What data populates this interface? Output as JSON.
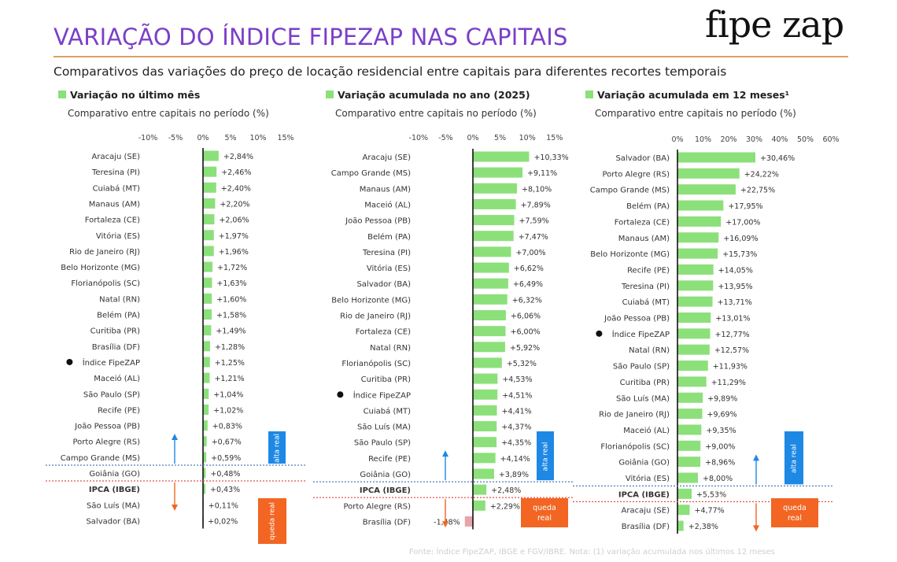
{
  "header": {
    "title": "VARIAÇÃO DO ÍNDICE FIPEZAP NAS CAPITAIS",
    "logo": "fipe zap",
    "subtitle": "Comparativos das variações do preço de locação residencial entre capitais para diferentes recortes temporais",
    "footnote": "Fonte: Índice FipeZAP, IBGE e FGV/IBRE. Nota: (1) variação acumulada nos últimos 12 meses"
  },
  "colors": {
    "bar": "#8ce07a",
    "bar_negative": "#e8a3ab",
    "alta": "#1e88e5",
    "queda": "#f26522",
    "blue_line": "#4a7fb8",
    "red_line": "#e0504a",
    "title": "#7b3fc8"
  },
  "chart_data": [
    {
      "type": "bar",
      "orientation": "horizontal",
      "title": "Variação no último mês",
      "subtitle": "Comparativo entre capitais no período (%)",
      "xlim": [
        -10,
        15
      ],
      "ticks": [
        -10,
        -5,
        0,
        5,
        10,
        15
      ],
      "tick_labels": [
        "-10%",
        "-5%",
        "0%",
        "5%",
        "10%",
        "15%"
      ],
      "ipca_index": 20,
      "rows": [
        {
          "label": "Aracaju (SE)",
          "value": 2.84,
          "text": "+2,84%"
        },
        {
          "label": "Teresina (PI)",
          "value": 2.46,
          "text": "+2,46%"
        },
        {
          "label": "Cuiabá (MT)",
          "value": 2.4,
          "text": "+2,40%"
        },
        {
          "label": "Manaus (AM)",
          "value": 2.2,
          "text": "+2,20%"
        },
        {
          "label": "Fortaleza (CE)",
          "value": 2.06,
          "text": "+2,06%"
        },
        {
          "label": "Vitória (ES)",
          "value": 1.97,
          "text": "+1,97%"
        },
        {
          "label": "Rio de Janeiro (RJ)",
          "value": 1.96,
          "text": "+1,96%"
        },
        {
          "label": "Belo Horizonte (MG)",
          "value": 1.72,
          "text": "+1,72%"
        },
        {
          "label": "Florianópolis (SC)",
          "value": 1.63,
          "text": "+1,63%"
        },
        {
          "label": "Natal (RN)",
          "value": 1.6,
          "text": "+1,60%"
        },
        {
          "label": "Belém (PA)",
          "value": 1.58,
          "text": "+1,58%"
        },
        {
          "label": "Curitiba (PR)",
          "value": 1.49,
          "text": "+1,49%"
        },
        {
          "label": "Brasília (DF)",
          "value": 1.28,
          "text": "+1,28%"
        },
        {
          "label": "Índice FipeZAP",
          "value": 1.25,
          "text": "+1,25%",
          "marker": true
        },
        {
          "label": "Maceió (AL)",
          "value": 1.21,
          "text": "+1,21%"
        },
        {
          "label": "São Paulo (SP)",
          "value": 1.04,
          "text": "+1,04%"
        },
        {
          "label": "Recife (PE)",
          "value": 1.02,
          "text": "+1,02%"
        },
        {
          "label": "João Pessoa (PB)",
          "value": 0.83,
          "text": "+0,83%"
        },
        {
          "label": "Porto Alegre (RS)",
          "value": 0.67,
          "text": "+0,67%"
        },
        {
          "label": "Campo Grande (MS)",
          "value": 0.59,
          "text": "+0,59%"
        },
        {
          "label": "Goiânia (GO)",
          "value": 0.48,
          "text": "+0,48%"
        },
        {
          "label": "IPCA (IBGE)",
          "value": 0.43,
          "text": "+0,43%",
          "ipca": true
        },
        {
          "label": "São Luís (MA)",
          "value": 0.11,
          "text": "+0,11%"
        },
        {
          "label": "Salvador (BA)",
          "value": 0.02,
          "text": "+0,02%"
        }
      ],
      "alta_label": "alta real",
      "queda_label": "queda real"
    },
    {
      "type": "bar",
      "orientation": "horizontal",
      "title": "Variação acumulada no ano (2025)",
      "subtitle": "Comparativo entre capitais no período (%)",
      "xlim": [
        -10,
        15
      ],
      "ticks": [
        -10,
        -5,
        0,
        5,
        10,
        15
      ],
      "tick_labels": [
        "-10%",
        "-5%",
        "0%",
        "5%",
        "10%",
        "15%"
      ],
      "ipca_index": 21,
      "rows": [
        {
          "label": "Aracaju (SE)",
          "value": 10.33,
          "text": "+10,33%"
        },
        {
          "label": "Campo Grande (MS)",
          "value": 9.11,
          "text": "+9,11%"
        },
        {
          "label": "Manaus (AM)",
          "value": 8.1,
          "text": "+8,10%"
        },
        {
          "label": "Maceió (AL)",
          "value": 7.89,
          "text": "+7,89%"
        },
        {
          "label": "João Pessoa (PB)",
          "value": 7.59,
          "text": "+7,59%"
        },
        {
          "label": "Belém (PA)",
          "value": 7.47,
          "text": "+7,47%"
        },
        {
          "label": "Teresina (PI)",
          "value": 7.0,
          "text": "+7,00%"
        },
        {
          "label": "Vitória (ES)",
          "value": 6.62,
          "text": "+6,62%"
        },
        {
          "label": "Salvador (BA)",
          "value": 6.49,
          "text": "+6,49%"
        },
        {
          "label": "Belo Horizonte (MG)",
          "value": 6.32,
          "text": "+6,32%"
        },
        {
          "label": "Rio de Janeiro (RJ)",
          "value": 6.06,
          "text": "+6,06%"
        },
        {
          "label": "Fortaleza (CE)",
          "value": 6.0,
          "text": "+6,00%"
        },
        {
          "label": "Natal (RN)",
          "value": 5.92,
          "text": "+5,92%"
        },
        {
          "label": "Florianópolis (SC)",
          "value": 5.32,
          "text": "+5,32%"
        },
        {
          "label": "Curitiba (PR)",
          "value": 4.53,
          "text": "+4,53%"
        },
        {
          "label": "Índice FipeZAP",
          "value": 4.51,
          "text": "+4,51%",
          "marker": true
        },
        {
          "label": "Cuiabá (MT)",
          "value": 4.41,
          "text": "+4,41%"
        },
        {
          "label": "São Luís (MA)",
          "value": 4.37,
          "text": "+4,37%"
        },
        {
          "label": "São Paulo (SP)",
          "value": 4.35,
          "text": "+4,35%"
        },
        {
          "label": "Recife (PE)",
          "value": 4.14,
          "text": "+4,14%"
        },
        {
          "label": "Goiânia (GO)",
          "value": 3.89,
          "text": "+3,89%"
        },
        {
          "label": "IPCA (IBGE)",
          "value": 2.48,
          "text": "+2,48%",
          "ipca": true
        },
        {
          "label": "Porto Alegre (RS)",
          "value": 2.29,
          "text": "+2,29%"
        },
        {
          "label": "Brasília (DF)",
          "value": -1.48,
          "text": "-1,48%"
        }
      ],
      "alta_label": "alta real",
      "queda_label": "queda real"
    },
    {
      "type": "bar",
      "orientation": "horizontal",
      "title": "Variação acumulada em 12 meses¹",
      "subtitle": "Comparativo entre capitais no período (%)",
      "xlim": [
        0,
        60
      ],
      "ticks": [
        0,
        10,
        20,
        30,
        40,
        50,
        60
      ],
      "tick_labels": [
        "0%",
        "10%",
        "20%",
        "30%",
        "40%",
        "50%",
        "60%"
      ],
      "ipca_index": 21,
      "rows": [
        {
          "label": "Salvador (BA)",
          "value": 30.46,
          "text": "+30,46%"
        },
        {
          "label": "Porto Alegre (RS)",
          "value": 24.22,
          "text": "+24,22%"
        },
        {
          "label": "Campo Grande (MS)",
          "value": 22.75,
          "text": "+22,75%"
        },
        {
          "label": "Belém (PA)",
          "value": 17.95,
          "text": "+17,95%"
        },
        {
          "label": "Fortaleza (CE)",
          "value": 17.0,
          "text": "+17,00%"
        },
        {
          "label": "Manaus (AM)",
          "value": 16.09,
          "text": "+16,09%"
        },
        {
          "label": "Belo Horizonte (MG)",
          "value": 15.73,
          "text": "+15,73%"
        },
        {
          "label": "Recife (PE)",
          "value": 14.05,
          "text": "+14,05%"
        },
        {
          "label": "Teresina (PI)",
          "value": 13.95,
          "text": "+13,95%"
        },
        {
          "label": "Cuiabá (MT)",
          "value": 13.71,
          "text": "+13,71%"
        },
        {
          "label": "João Pessoa (PB)",
          "value": 13.01,
          "text": "+13,01%"
        },
        {
          "label": "Índice FipeZAP",
          "value": 12.77,
          "text": "+12,77%",
          "marker": true
        },
        {
          "label": "Natal (RN)",
          "value": 12.57,
          "text": "+12,57%"
        },
        {
          "label": "São Paulo (SP)",
          "value": 11.93,
          "text": "+11,93%"
        },
        {
          "label": "Curitiba (PR)",
          "value": 11.29,
          "text": "+11,29%"
        },
        {
          "label": "São Luís (MA)",
          "value": 9.89,
          "text": "+9,89%"
        },
        {
          "label": "Rio de Janeiro (RJ)",
          "value": 9.69,
          "text": "+9,69%"
        },
        {
          "label": "Maceió (AL)",
          "value": 9.35,
          "text": "+9,35%"
        },
        {
          "label": "Florianópolis (SC)",
          "value": 9.0,
          "text": "+9,00%"
        },
        {
          "label": "Goiânia (GO)",
          "value": 8.96,
          "text": "+8,96%"
        },
        {
          "label": "Vitória (ES)",
          "value": 8.0,
          "text": "+8,00%"
        },
        {
          "label": "IPCA (IBGE)",
          "value": 5.53,
          "text": "+5,53%",
          "ipca": true
        },
        {
          "label": "Aracaju (SE)",
          "value": 4.77,
          "text": "+4,77%"
        },
        {
          "label": "Brasília (DF)",
          "value": 2.38,
          "text": "+2,38%"
        }
      ],
      "alta_label": "alta real",
      "queda_label": "queda real"
    }
  ]
}
